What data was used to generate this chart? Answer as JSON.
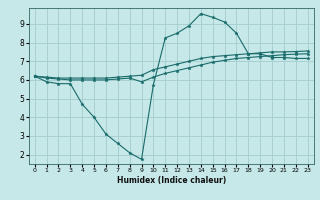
{
  "xlabel": "Humidex (Indice chaleur)",
  "background_color": "#c6e8e8",
  "grid_color": "#a8d0d0",
  "line_color": "#1a6b6b",
  "x_ticks": [
    0,
    1,
    2,
    3,
    4,
    5,
    6,
    7,
    8,
    9,
    10,
    11,
    12,
    13,
    14,
    15,
    16,
    17,
    18,
    19,
    20,
    21,
    22,
    23
  ],
  "y_ticks": [
    2,
    3,
    4,
    5,
    6,
    7,
    8,
    9
  ],
  "ylim": [
    1.5,
    9.85
  ],
  "xlim": [
    -0.5,
    23.5
  ],
  "series": [
    {
      "x": [
        0,
        1,
        2,
        3,
        4,
        5,
        6,
        7,
        8,
        9,
        10,
        11,
        12,
        13,
        14,
        15,
        16,
        17,
        18,
        19,
        20,
        21,
        22,
        23
      ],
      "y": [
        6.2,
        5.9,
        5.8,
        5.8,
        4.7,
        4.0,
        3.1,
        2.6,
        2.1,
        1.75,
        5.75,
        8.25,
        8.5,
        8.9,
        9.55,
        9.35,
        9.1,
        8.5,
        7.4,
        7.4,
        7.2,
        7.2,
        7.15,
        7.15
      ]
    },
    {
      "x": [
        0,
        1,
        2,
        3,
        4,
        5,
        6,
        7,
        8,
        9,
        10,
        11,
        12,
        13,
        14,
        15,
        16,
        17,
        18,
        19,
        20,
        21,
        22,
        23
      ],
      "y": [
        6.2,
        6.1,
        6.05,
        6.0,
        6.0,
        6.0,
        6.0,
        6.05,
        6.1,
        5.9,
        6.15,
        6.35,
        6.5,
        6.65,
        6.8,
        6.95,
        7.05,
        7.15,
        7.2,
        7.25,
        7.3,
        7.35,
        7.38,
        7.4
      ]
    },
    {
      "x": [
        0,
        1,
        2,
        3,
        4,
        5,
        6,
        7,
        8,
        9,
        10,
        11,
        12,
        13,
        14,
        15,
        16,
        17,
        18,
        19,
        20,
        21,
        22,
        23
      ],
      "y": [
        6.2,
        6.15,
        6.1,
        6.1,
        6.1,
        6.1,
        6.1,
        6.15,
        6.2,
        6.25,
        6.55,
        6.7,
        6.85,
        7.0,
        7.15,
        7.25,
        7.3,
        7.35,
        7.4,
        7.45,
        7.5,
        7.5,
        7.52,
        7.55
      ]
    }
  ]
}
